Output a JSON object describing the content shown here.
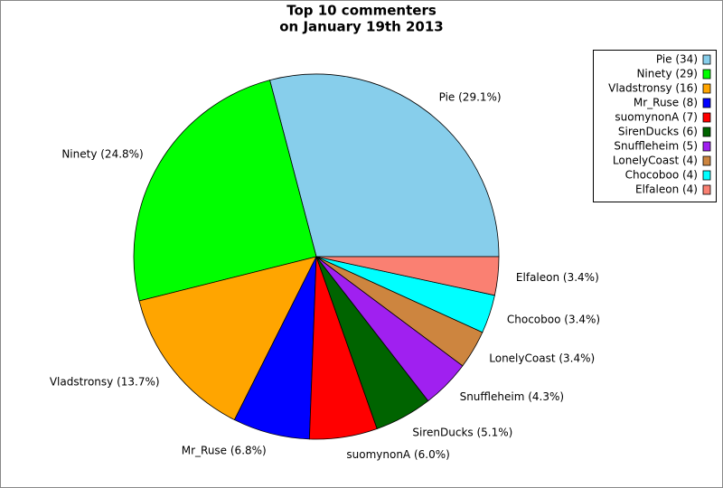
{
  "chart_data": {
    "type": "pie",
    "title": [
      "Top 10 commenters",
      "on January 19th 2013"
    ],
    "categories": [
      "Pie (34)",
      "Ninety (29)",
      "Vladstronsy (16)",
      "Mr_Ruse (8)",
      "suomynonA (7)",
      "SirenDucks (6)",
      "Snuffleheim (5)",
      "LonelyCoast (4)",
      "Chocoboo (4)",
      "Elfaleon (4)"
    ],
    "values": [
      29.1,
      24.8,
      13.7,
      6.8,
      6.0,
      5.1,
      4.3,
      3.4,
      3.4,
      3.4
    ],
    "value_labels": [
      "Pie (29.1%)",
      "Ninety (24.8%)",
      "Vladstronsy (13.7%)",
      "Mr_Ruse (6.8%)",
      "suomynonA (6.0%)",
      "SirenDucks (5.1%)",
      "Snuffleheim (4.3%)",
      "LonelyCoast (3.4%)",
      "Chocoboo (3.4%)",
      "Elfaleon (3.4%)"
    ],
    "colors": [
      "#87ceeb",
      "#00ff00",
      "#ffa500",
      "#0000ff",
      "#ff0000",
      "#006400",
      "#a020f0",
      "#cd853f",
      "#00ffff",
      "#fa8072"
    ],
    "legend": "upper right"
  }
}
